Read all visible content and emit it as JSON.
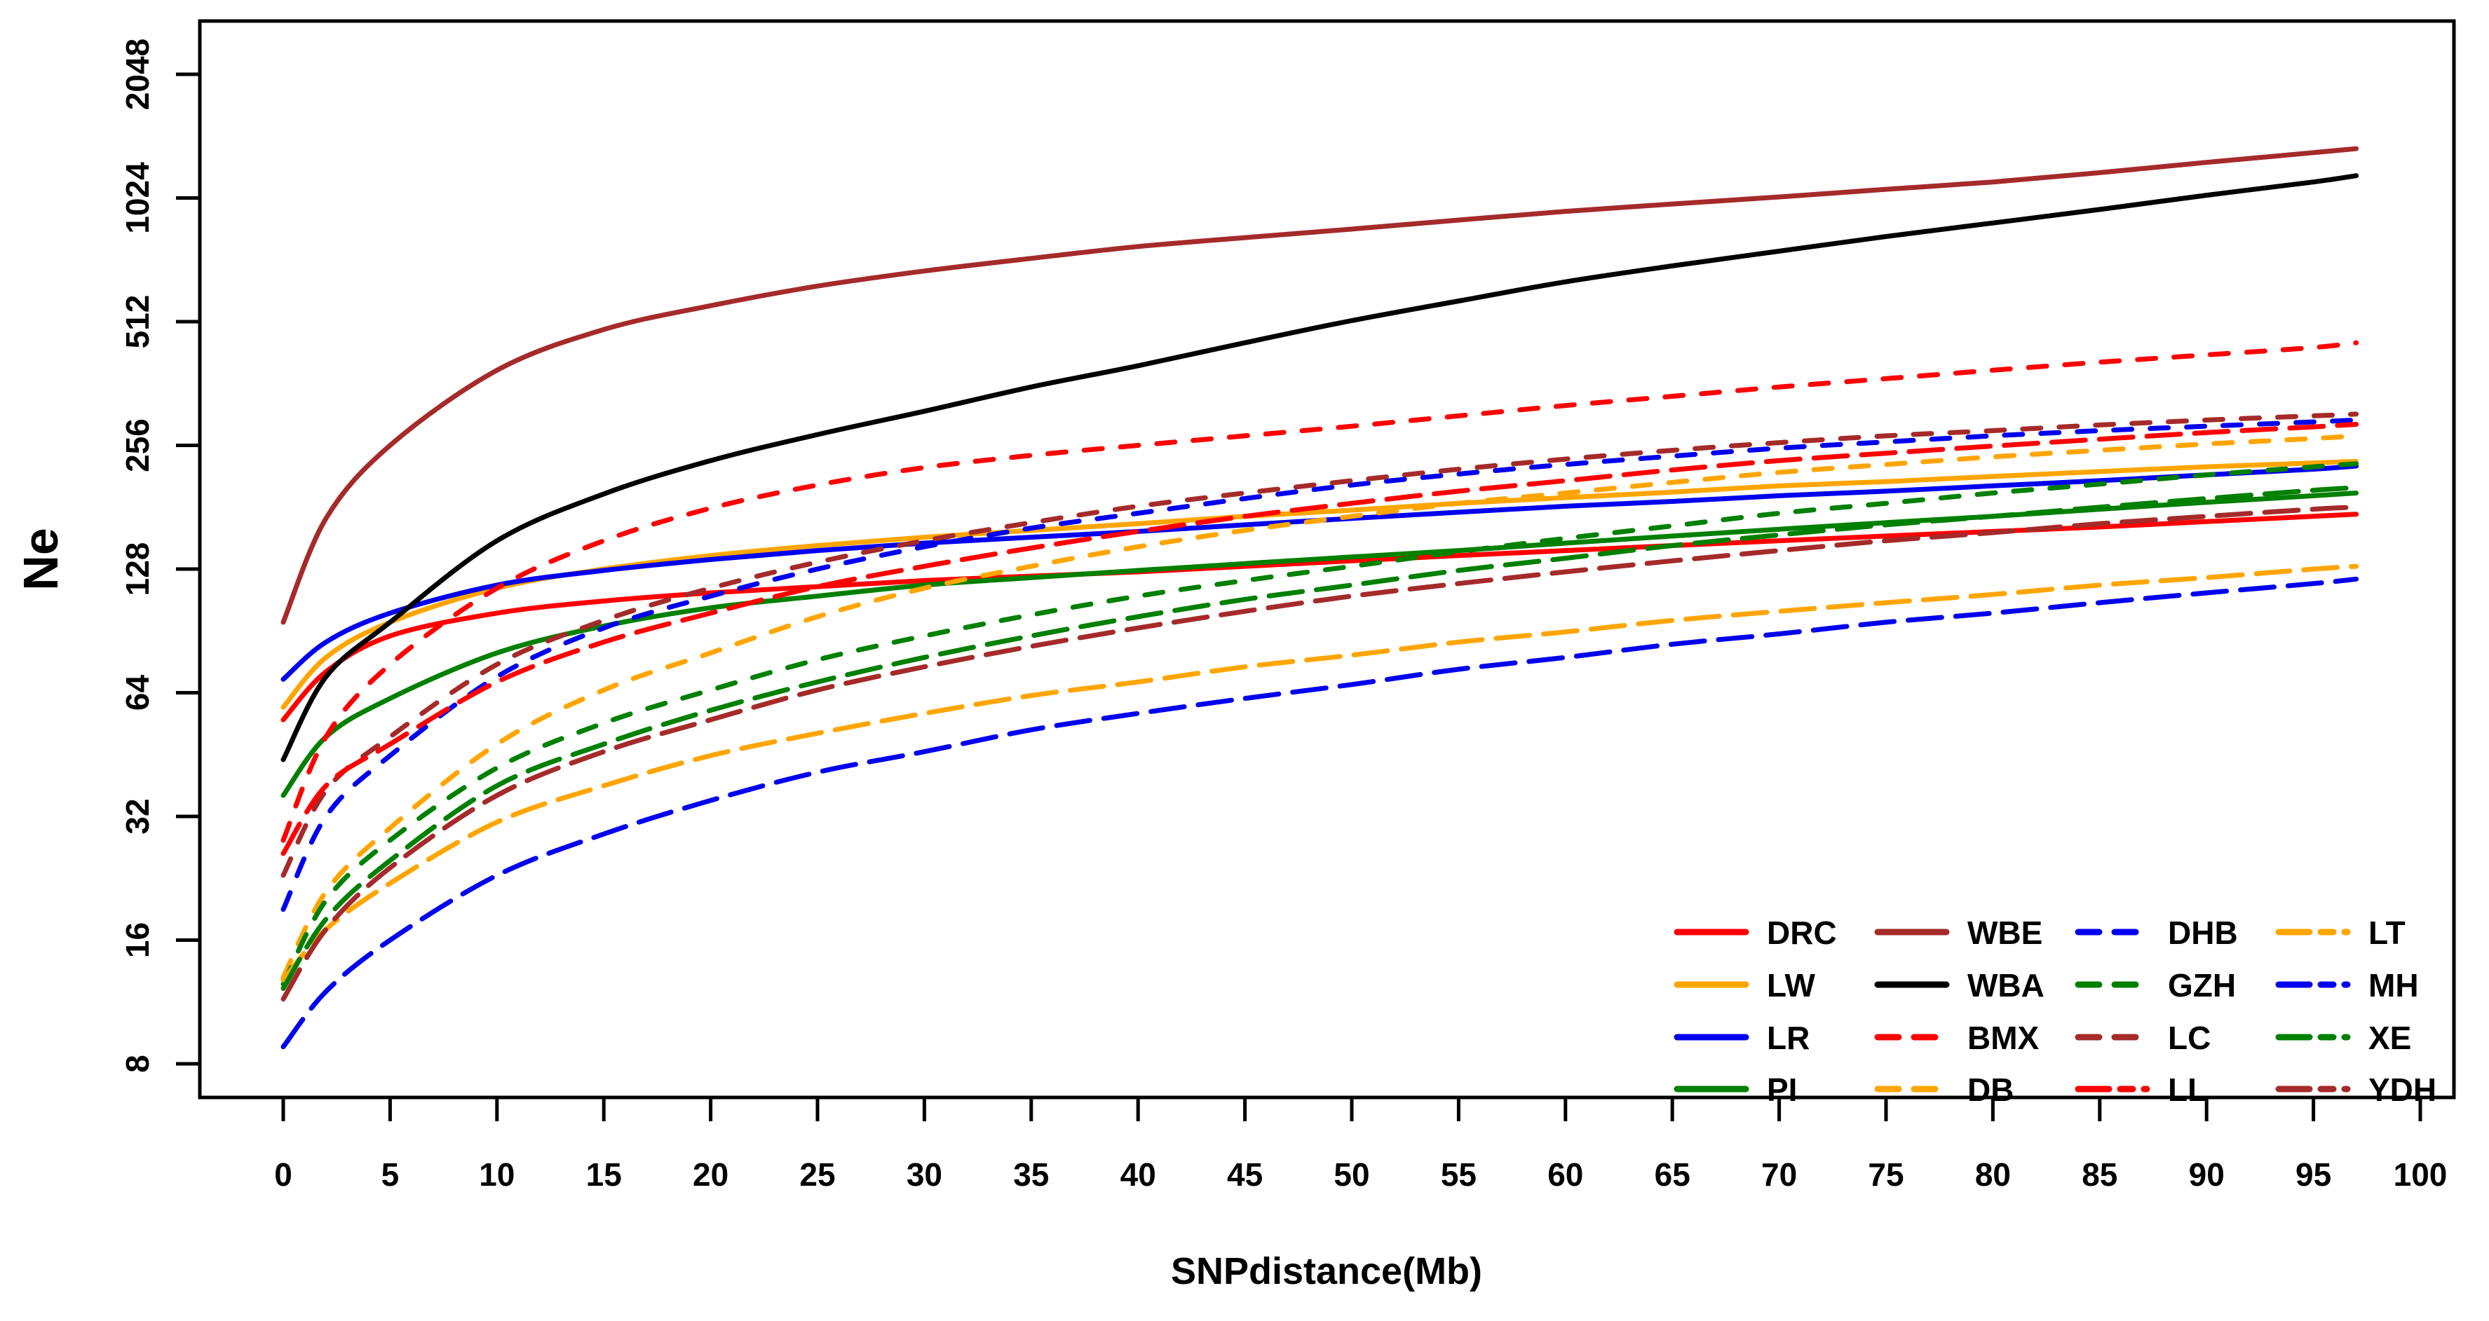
{
  "page": {
    "background": "#FFFFFF"
  },
  "chart_data": {
    "type": "line",
    "title": "",
    "xlabel": "SNPdistance(Mb)",
    "ylabel": "Ne",
    "x_axis": {
      "min": 0,
      "max": 100,
      "ticks": [
        0,
        5,
        10,
        15,
        20,
        25,
        30,
        35,
        40,
        45,
        50,
        55,
        60,
        65,
        70,
        75,
        80,
        85,
        90,
        95,
        100
      ]
    },
    "y_axis": {
      "scale": "log2",
      "min": 8,
      "max": 2048,
      "ticks": [
        8,
        16,
        32,
        64,
        128,
        256,
        512,
        1024,
        2048
      ]
    },
    "grid": false,
    "legend_position": "bottom-right",
    "legend_ncol": 4,
    "legend_columns": [
      [
        "DRC",
        "LW",
        "LR",
        "PI"
      ],
      [
        "WBE",
        "WBA",
        "BMX",
        "DB"
      ],
      [
        "DHB",
        "GZH",
        "LC",
        "LL"
      ],
      [
        "LT",
        "MH",
        "XE",
        "YDH"
      ]
    ],
    "colors": {
      "red": "#FF0000",
      "orange": "#FFA500",
      "blue": "#0000EE",
      "green": "#008000",
      "brown": "#A52A2A",
      "black": "#000000"
    },
    "x": [
      0,
      2,
      5,
      10,
      15,
      20,
      25,
      30,
      35,
      40,
      45,
      50,
      55,
      60,
      65,
      70,
      75,
      80,
      85,
      90,
      95,
      97
    ],
    "series": [
      {
        "name": "DRC",
        "color": "#FF0000",
        "style": "solid",
        "values": [
          55,
          72,
          88,
          100,
          107,
          112,
          116,
          120,
          123,
          126,
          130,
          134,
          138,
          142,
          146,
          150,
          154,
          158,
          162,
          167,
          172,
          174
        ]
      },
      {
        "name": "LW",
        "color": "#FFA500",
        "style": "solid",
        "values": [
          59,
          78,
          95,
          115,
          128,
          138,
          146,
          153,
          159,
          165,
          172,
          178,
          185,
          191,
          197,
          204,
          209,
          215,
          221,
          227,
          232,
          234
        ]
      },
      {
        "name": "LR",
        "color": "#0000EE",
        "style": "solid",
        "values": [
          69,
          85,
          100,
          117,
          127,
          135,
          142,
          148,
          153,
          158,
          164,
          170,
          176,
          182,
          187,
          193,
          198,
          204,
          210,
          217,
          224,
          228
        ]
      },
      {
        "name": "PI",
        "color": "#008000",
        "style": "solid",
        "values": [
          36,
          50,
          62,
          80,
          93,
          103,
          110,
          117,
          122,
          127,
          132,
          137,
          142,
          148,
          154,
          160,
          166,
          172,
          179,
          186,
          193,
          196
        ]
      },
      {
        "name": "WBE",
        "color": "#A52A2A",
        "style": "solid",
        "values": [
          95,
          170,
          256,
          390,
          490,
          560,
          625,
          680,
          730,
          780,
          820,
          860,
          905,
          950,
          990,
          1030,
          1075,
          1120,
          1180,
          1250,
          1320,
          1350
        ]
      },
      {
        "name": "WBA",
        "color": "#000000",
        "style": "solid",
        "values": [
          44,
          70,
          95,
          150,
          195,
          235,
          272,
          310,
          355,
          400,
          455,
          515,
          575,
          640,
          700,
          760,
          825,
          890,
          960,
          1040,
          1120,
          1160
        ]
      },
      {
        "name": "BMX",
        "color": "#FF0000",
        "style": "dashed",
        "values": [
          28,
          50,
          75,
          115,
          150,
          180,
          205,
          226,
          242,
          256,
          270,
          285,
          302,
          320,
          337,
          355,
          372,
          390,
          408,
          425,
          443,
          455
        ]
      },
      {
        "name": "DB",
        "color": "#FFA500",
        "style": "dashed",
        "values": [
          13,
          21,
          30,
          48,
          65,
          80,
          98,
          115,
          130,
          145,
          159,
          172,
          185,
          196,
          208,
          220,
          230,
          240,
          249,
          258,
          266,
          270
        ]
      },
      {
        "name": "DHB",
        "color": "#0000EE",
        "style": "dashed",
        "values": [
          19,
          32,
          45,
          70,
          92,
          110,
          128,
          145,
          161,
          175,
          190,
          205,
          218,
          230,
          241,
          252,
          261,
          270,
          278,
          285,
          292,
          295
        ]
      },
      {
        "name": "GZH",
        "color": "#008000",
        "style": "dashed",
        "values": [
          12.5,
          20,
          28,
          42,
          54,
          65,
          77,
          88,
          99,
          110,
          120,
          130,
          141,
          152,
          163,
          175,
          185,
          196,
          206,
          217,
          227,
          231
        ]
      },
      {
        "name": "LC",
        "color": "#A52A2A",
        "style": "dashed",
        "values": [
          23,
          37,
          50,
          75,
          96,
          115,
          133,
          150,
          166,
          182,
          196,
          210,
          224,
          237,
          249,
          260,
          270,
          278,
          287,
          295,
          302,
          305
        ]
      },
      {
        "name": "LL",
        "color": "#FF0000",
        "style": "longdash",
        "values": [
          26,
          38,
          48,
          68,
          85,
          100,
          116,
          130,
          144,
          158,
          172,
          185,
          198,
          210,
          223,
          235,
          245,
          255,
          265,
          275,
          284,
          288
        ]
      },
      {
        "name": "LT",
        "color": "#FFA500",
        "style": "longdash",
        "values": [
          12.8,
          17,
          22,
          31,
          38,
          45,
          51,
          57,
          63,
          68,
          74,
          79,
          85,
          90,
          96,
          101,
          106,
          111,
          117,
          122,
          128,
          130
        ]
      },
      {
        "name": "MH",
        "color": "#0000EE",
        "style": "longdash",
        "values": [
          8.8,
          12,
          16,
          23,
          29,
          35,
          41,
          46,
          52,
          57,
          62,
          67,
          73,
          78,
          84,
          89,
          95,
          100,
          106,
          112,
          118,
          121
        ]
      },
      {
        "name": "XE",
        "color": "#008000",
        "style": "longdash",
        "values": [
          12.2,
          18,
          25,
          38,
          48,
          58,
          68,
          78,
          88,
          98,
          108,
          117,
          127,
          136,
          146,
          155,
          164,
          172,
          181,
          190,
          199,
          202
        ]
      },
      {
        "name": "YDH",
        "color": "#A52A2A",
        "style": "longdash",
        "values": [
          11.5,
          17,
          24,
          36,
          46,
          55,
          65,
          74,
          83,
          92,
          101,
          110,
          118,
          126,
          134,
          142,
          150,
          157,
          165,
          172,
          179,
          181
        ]
      }
    ]
  }
}
